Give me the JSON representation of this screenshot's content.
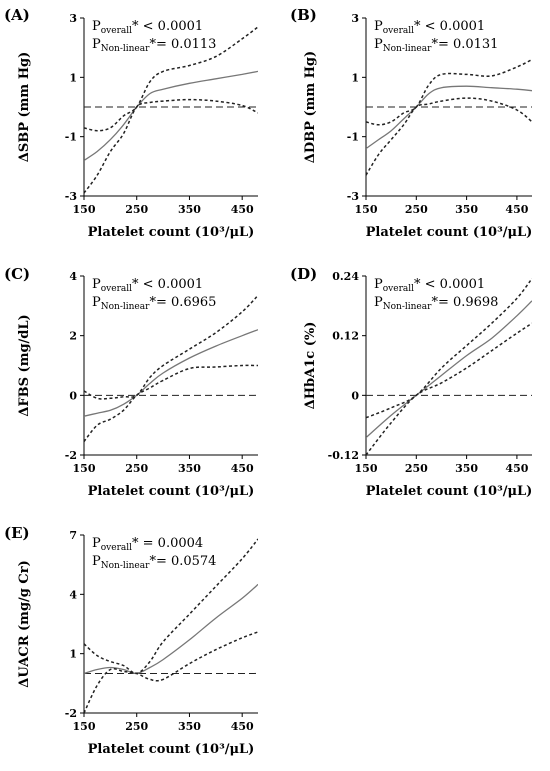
{
  "chart_data": [
    {
      "type": "line",
      "panel": "(A)",
      "xlabel": "Platelet count (10³/μL)",
      "ylabel": "ΔSBP (mm Hg)",
      "xlim": [
        150,
        480
      ],
      "ylim": [
        -3,
        3
      ],
      "xticks": [
        150,
        250,
        350,
        450
      ],
      "yticks": [
        -3,
        -1,
        1,
        3
      ],
      "reference_line": 0,
      "annotations": [
        {
          "prefix": "P",
          "sub": "overall",
          "suffix": "* < 0.0001"
        },
        {
          "prefix": "P",
          "sub": "Non-linear",
          "suffix": "*= 0.0113"
        }
      ],
      "x": [
        150,
        175,
        200,
        225,
        250,
        275,
        300,
        350,
        400,
        450,
        480
      ],
      "series": [
        {
          "style": "solid",
          "values": [
            -1.8,
            -1.5,
            -1.1,
            -0.6,
            0.0,
            0.45,
            0.6,
            0.8,
            0.95,
            1.1,
            1.2
          ]
        },
        {
          "style": "dashed",
          "values": [
            -0.7,
            -0.8,
            -0.7,
            -0.3,
            0.0,
            0.85,
            1.2,
            1.4,
            1.7,
            2.3,
            2.7
          ]
        },
        {
          "style": "dashed",
          "values": [
            -2.9,
            -2.3,
            -1.5,
            -0.9,
            0.0,
            0.15,
            0.2,
            0.25,
            0.2,
            0.05,
            -0.2
          ]
        }
      ]
    },
    {
      "type": "line",
      "panel": "(B)",
      "xlabel": "Platelet count (10³/μL)",
      "ylabel": "ΔDBP (mm Hg)",
      "xlim": [
        150,
        480
      ],
      "ylim": [
        -3,
        3
      ],
      "xticks": [
        150,
        250,
        350,
        450
      ],
      "yticks": [
        -3,
        -1,
        1,
        3
      ],
      "reference_line": 0,
      "annotations": [
        {
          "prefix": "P",
          "sub": "overall",
          "suffix": "* < 0.0001"
        },
        {
          "prefix": "P",
          "sub": "Non-linear",
          "suffix": "*= 0.0131"
        }
      ],
      "x": [
        150,
        175,
        200,
        225,
        250,
        275,
        300,
        350,
        400,
        450,
        480
      ],
      "series": [
        {
          "style": "solid",
          "values": [
            -1.4,
            -1.1,
            -0.8,
            -0.4,
            0.0,
            0.45,
            0.65,
            0.7,
            0.65,
            0.6,
            0.55
          ]
        },
        {
          "style": "dashed",
          "values": [
            -0.5,
            -0.6,
            -0.5,
            -0.2,
            0.0,
            0.75,
            1.1,
            1.1,
            1.05,
            1.35,
            1.6
          ]
        },
        {
          "style": "dashed",
          "values": [
            -2.3,
            -1.6,
            -1.1,
            -0.6,
            0.0,
            0.1,
            0.2,
            0.3,
            0.2,
            -0.1,
            -0.5
          ]
        }
      ]
    },
    {
      "type": "line",
      "panel": "(C)",
      "xlabel": "Platelet count (10³/μL)",
      "ylabel": "ΔFBS (mg/dL)",
      "xlim": [
        150,
        480
      ],
      "ylim": [
        -2,
        4
      ],
      "xticks": [
        150,
        250,
        350,
        450
      ],
      "yticks": [
        -2,
        0,
        2,
        4
      ],
      "reference_line": 0,
      "annotations": [
        {
          "prefix": "P",
          "sub": "overall",
          "suffix": "* < 0.0001"
        },
        {
          "prefix": "P",
          "sub": "Non-linear",
          "suffix": "*= 0.6965"
        }
      ],
      "x": [
        150,
        175,
        200,
        225,
        250,
        275,
        300,
        350,
        400,
        450,
        480
      ],
      "series": [
        {
          "style": "solid",
          "values": [
            -0.7,
            -0.6,
            -0.5,
            -0.3,
            0.0,
            0.4,
            0.75,
            1.25,
            1.65,
            2.0,
            2.2
          ]
        },
        {
          "style": "dashed",
          "values": [
            0.15,
            -0.1,
            -0.1,
            -0.05,
            0.0,
            0.6,
            1.0,
            1.55,
            2.1,
            2.8,
            3.35
          ]
        },
        {
          "style": "dashed",
          "values": [
            -1.55,
            -1.0,
            -0.8,
            -0.5,
            0.0,
            0.25,
            0.5,
            0.9,
            0.95,
            1.0,
            1.0
          ]
        }
      ]
    },
    {
      "type": "line",
      "panel": "(D)",
      "xlabel": "Platelet count (10³/μL)",
      "ylabel": "ΔHbA1c (%)",
      "xlim": [
        150,
        480
      ],
      "ylim": [
        -0.12,
        0.24
      ],
      "xticks": [
        150,
        250,
        350,
        450
      ],
      "yticks": [
        -0.12,
        0,
        0.12,
        0.24
      ],
      "reference_line": 0,
      "annotations": [
        {
          "prefix": "P",
          "sub": "overall",
          "suffix": "* < 0.0001"
        },
        {
          "prefix": "P",
          "sub": "Non-linear",
          "suffix": "*= 0.9698"
        }
      ],
      "x": [
        150,
        200,
        250,
        300,
        350,
        400,
        450,
        480
      ],
      "series": [
        {
          "style": "solid",
          "values": [
            -0.085,
            -0.04,
            0.0,
            0.04,
            0.08,
            0.115,
            0.16,
            0.19
          ]
        },
        {
          "style": "dashed",
          "values": [
            -0.045,
            -0.025,
            0.0,
            0.055,
            0.1,
            0.145,
            0.195,
            0.235
          ]
        },
        {
          "style": "dashed",
          "values": [
            -0.12,
            -0.055,
            0.0,
            0.025,
            0.055,
            0.09,
            0.125,
            0.145
          ]
        }
      ]
    },
    {
      "type": "line",
      "panel": "(E)",
      "xlabel": "Platelet count (10³/μL)",
      "ylabel": "ΔUACR (mg/g Cr)",
      "xlim": [
        150,
        480
      ],
      "ylim": [
        -2,
        7
      ],
      "xticks": [
        150,
        250,
        350,
        450
      ],
      "yticks": [
        -2,
        1,
        4,
        7
      ],
      "reference_line": 0,
      "annotations": [
        {
          "prefix": "P",
          "sub": "overall",
          "suffix": "* = 0.0004"
        },
        {
          "prefix": "P",
          "sub": "Non-linear",
          "suffix": "*= 0.0574"
        }
      ],
      "x": [
        150,
        175,
        200,
        225,
        250,
        275,
        300,
        350,
        400,
        450,
        480
      ],
      "series": [
        {
          "style": "solid",
          "values": [
            0.0,
            0.2,
            0.3,
            0.2,
            0.0,
            0.3,
            0.7,
            1.7,
            2.8,
            3.8,
            4.5
          ]
        },
        {
          "style": "dashed",
          "values": [
            1.5,
            0.9,
            0.6,
            0.4,
            0.0,
            0.6,
            1.6,
            3.0,
            4.4,
            5.8,
            6.8
          ]
        },
        {
          "style": "dashed",
          "values": [
            -2.0,
            -0.6,
            0.2,
            0.1,
            0.0,
            -0.3,
            -0.3,
            0.5,
            1.2,
            1.8,
            2.1
          ]
        }
      ]
    }
  ]
}
